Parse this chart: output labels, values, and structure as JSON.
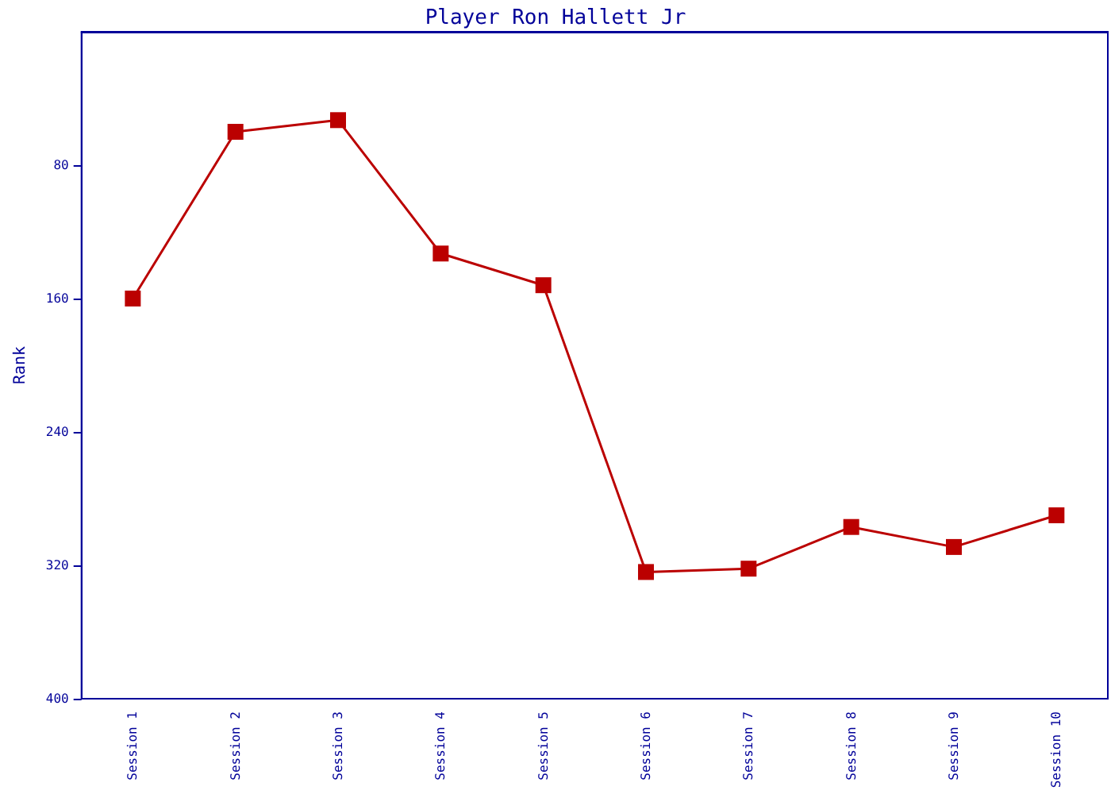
{
  "chart_data": {
    "type": "line",
    "title": "Player Ron Hallett Jr",
    "ylabel": "Rank",
    "categories": [
      "Session 1",
      "Session 2",
      "Session 3",
      "Session 4",
      "Session 5",
      "Session 6",
      "Session 7",
      "Session 8",
      "Session 9",
      "Session 10"
    ],
    "series": [
      {
        "color": "#bb0000",
        "values": [
          160,
          60,
          53,
          133,
          152,
          324,
          322,
          297,
          309,
          290
        ]
      }
    ],
    "ylim": [
      400,
      0
    ],
    "yticks": [
      80,
      160,
      240,
      320,
      400
    ],
    "grid": false,
    "marker": "square",
    "line_style": "solid"
  }
}
